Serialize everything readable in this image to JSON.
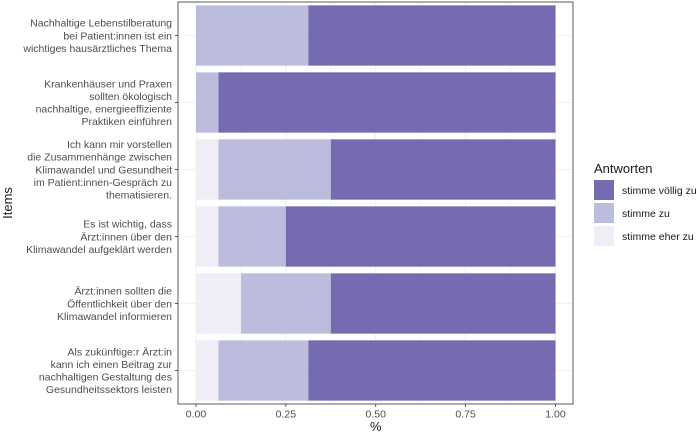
{
  "chart_data": {
    "type": "bar",
    "orientation": "horizontal",
    "stacked": true,
    "xlabel": "%",
    "ylabel": "Items",
    "xlim": [
      0,
      1
    ],
    "x_ticks": [
      "0.00",
      "0.25",
      "0.50",
      "0.75",
      "1.00"
    ],
    "grid": true,
    "legend_position": "right",
    "legend_title": "Antworten",
    "categories": [
      [
        "Nachhaltige Lebenstilberatung",
        "bei Patient:innen ist ein",
        "wichtiges hausärztliches Thema"
      ],
      [
        "Krankenhäuser und Praxen",
        "sollten ökologisch",
        "nachhaltige, energieeffiziente",
        "Praktiken einführen"
      ],
      [
        "Ich kann mir vorstellen",
        "die Zusammenhänge zwischen",
        "Klimawandel und Gesundheit",
        "im Patient:innen-Gespräch zu",
        "thematisieren."
      ],
      [
        "Es ist wichtig, dass",
        "Ärzt:innen über den",
        "Klimawandel aufgeklärt werden"
      ],
      [
        "Ärzt:innen sollten die",
        "Öffentlichkeit über den",
        "Klimawandel informieren"
      ],
      [
        "Als zukünftige:r Ärzt:in",
        "kann ich einen Beitrag zur",
        "nachhaltigen Gestaltung des",
        "Gesundheitssektors leisten"
      ]
    ],
    "series": [
      {
        "name": "stimme eher zu",
        "color": "#efedf5",
        "values": [
          0.0,
          0.0,
          0.0625,
          0.0625,
          0.125,
          0.0625
        ]
      },
      {
        "name": "stimme zu",
        "color": "#bcbddc",
        "values": [
          0.3125,
          0.0625,
          0.3125,
          0.1875,
          0.25,
          0.25
        ]
      },
      {
        "name": "stimme völlig zu",
        "color": "#756bb1",
        "values": [
          0.6875,
          0.9375,
          0.625,
          0.75,
          0.625,
          0.6875
        ]
      }
    ],
    "legend_order": [
      "stimme völlig zu",
      "stimme zu",
      "stimme eher zu"
    ]
  }
}
